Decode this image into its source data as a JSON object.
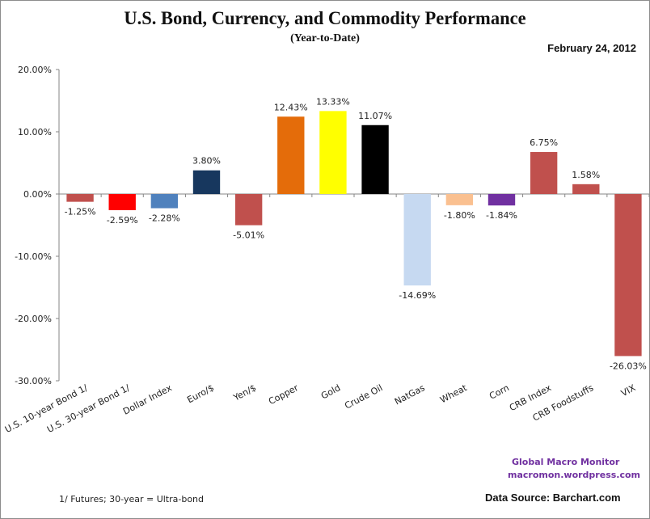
{
  "chart_data": {
    "type": "bar",
    "title": "U.S. Bond, Currency, and Commodity Performance",
    "subtitle": "(Year-to-Date)",
    "date": "February 24, 2012",
    "xlabel": "",
    "ylabel": "",
    "ylim": [
      -30,
      20
    ],
    "yticks": [
      20,
      10,
      0,
      -10,
      -20,
      -30
    ],
    "ytick_labels": [
      "20.00%",
      "10.00%",
      "0.00%",
      "-10.00%",
      "-20.00%",
      "-30.00%"
    ],
    "grid": false,
    "legend": "none",
    "categories": [
      "U.S. 10-year Bond 1/",
      "U.S. 30-year Bond 1/",
      "Dollar Index",
      "Euro/$",
      "Yen/$",
      "Copper",
      "Gold",
      "Crude Oil",
      "NatGas",
      "Wheat",
      "Corn",
      "CRB Index",
      "CRB Foodstuffs",
      "VIX"
    ],
    "values": [
      -1.25,
      -2.59,
      -2.28,
      3.8,
      -5.01,
      12.43,
      13.33,
      11.07,
      -14.69,
      -1.8,
      -1.84,
      6.75,
      1.58,
      -26.03
    ],
    "value_labels": [
      "-1.25%",
      "-2.59%",
      "-2.28%",
      "3.80%",
      "-5.01%",
      "12.43%",
      "13.33%",
      "11.07%",
      "-14.69%",
      "-1.80%",
      "-1.84%",
      "6.75%",
      "1.58%",
      "-26.03%"
    ],
    "colors": [
      "#c0504d",
      "#ff0000",
      "#4f81bd",
      "#17375e",
      "#c0504d",
      "#e46c0a",
      "#ffff00",
      "#000000",
      "#c6d9f1",
      "#fac090",
      "#7030a0",
      "#c0504d",
      "#c0504d",
      "#c0504d"
    ],
    "footnote": "1/   Futures; 30-year = Ultra-bond",
    "credit_line1": "Global  Macro  Monitor",
    "credit_line2": "macromon.wordpress.com",
    "source": "Data Source:  Barchart.com"
  }
}
